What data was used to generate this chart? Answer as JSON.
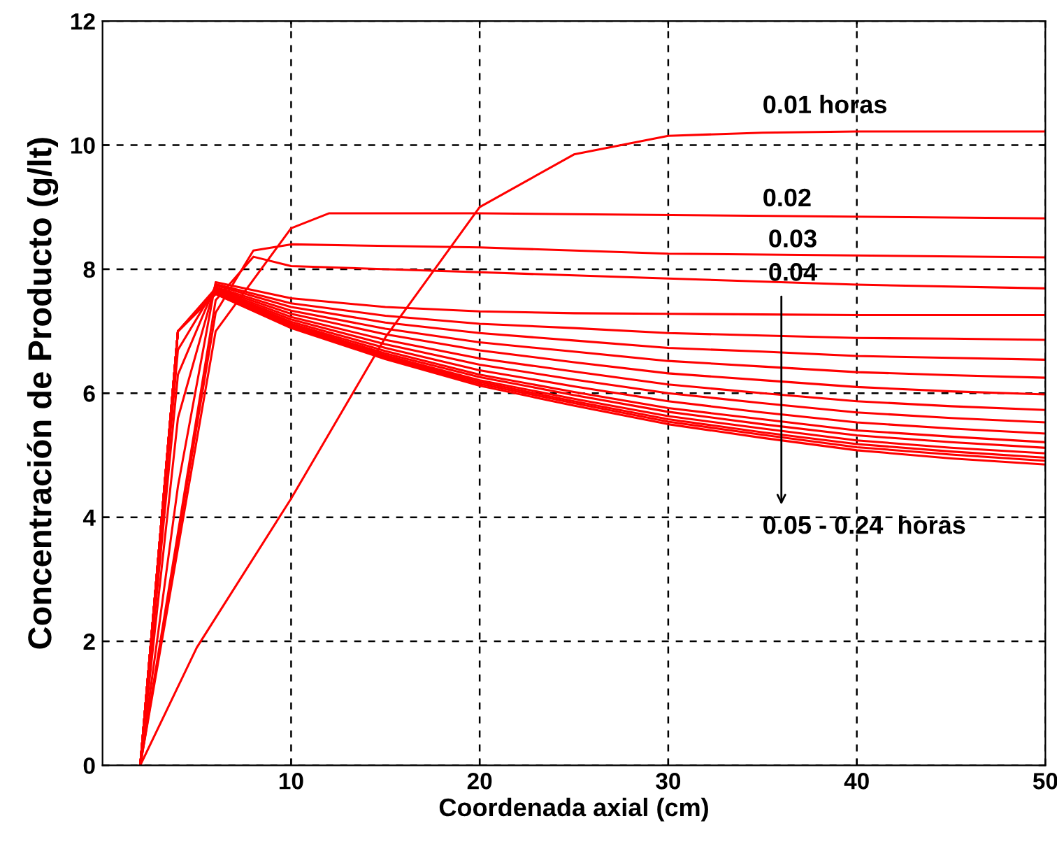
{
  "chart_data": {
    "type": "line",
    "xlabel": "Coordenada axial (cm)",
    "ylabel": "Concentración de Producto (g/lt)",
    "xlim": [
      0,
      50
    ],
    "ylim": [
      0,
      12
    ],
    "xticks": [
      10,
      20,
      30,
      40,
      50
    ],
    "yticks": [
      0,
      2,
      4,
      6,
      8,
      10,
      12
    ],
    "grid": true,
    "line_style": "solid",
    "marker": "none",
    "annotations": [
      "0.01 horas",
      "0.02",
      "0.03",
      "0.04",
      "0.05 - 0.24  horas"
    ],
    "series": [
      {
        "color": "#ff0000",
        "x": [
          2,
          5,
          10,
          15,
          20,
          25,
          30,
          35,
          40,
          50
        ],
        "values": [
          0,
          1.9,
          4.3,
          6.9,
          9.0,
          9.85,
          10.15,
          10.2,
          10.22,
          10.22
        ]
      },
      {
        "color": "#ff0000",
        "x": [
          2,
          6,
          10,
          12,
          20,
          50
        ],
        "values": [
          0,
          7.0,
          8.66,
          8.9,
          8.9,
          8.82
        ]
      },
      {
        "color": "#ff0000",
        "x": [
          2,
          6,
          8,
          10,
          20,
          30,
          50
        ],
        "values": [
          0,
          7.3,
          8.3,
          8.4,
          8.35,
          8.25,
          8.19
        ]
      },
      {
        "color": "#ff0000",
        "x": [
          2,
          6,
          8,
          10,
          20,
          30,
          40,
          50
        ],
        "values": [
          0,
          7.5,
          8.2,
          8.05,
          7.95,
          7.85,
          7.75,
          7.69
        ]
      },
      {
        "color": "#ff0000",
        "x": [
          2,
          4,
          6,
          10,
          15,
          20,
          25,
          30,
          35,
          40,
          45,
          50
        ],
        "values": [
          0,
          4.5,
          7.79,
          7.53,
          7.39,
          7.32,
          7.29,
          7.28,
          7.27,
          7.26,
          7.26,
          7.26
        ]
      },
      {
        "color": "#ff0000",
        "x": [
          2,
          4,
          6,
          10,
          15,
          20,
          25,
          30,
          35,
          40,
          45,
          50
        ],
        "values": [
          0,
          5.6,
          7.76,
          7.45,
          7.25,
          7.12,
          7.05,
          6.97,
          6.93,
          6.89,
          6.88,
          6.86
        ]
      },
      {
        "color": "#ff0000",
        "x": [
          2,
          4,
          6,
          10,
          15,
          20,
          25,
          30,
          35,
          40,
          45,
          50
        ],
        "values": [
          0,
          6.3,
          7.74,
          7.39,
          7.14,
          6.97,
          6.85,
          6.73,
          6.67,
          6.6,
          6.57,
          6.54
        ]
      },
      {
        "color": "#ff0000",
        "x": [
          2,
          4,
          6,
          10,
          15,
          20,
          25,
          30,
          35,
          40,
          45,
          50
        ],
        "values": [
          0,
          6.7,
          7.71,
          7.33,
          7.04,
          6.82,
          6.67,
          6.52,
          6.43,
          6.34,
          6.29,
          6.25
        ]
      },
      {
        "color": "#ff0000",
        "x": [
          2,
          4,
          6,
          10,
          15,
          20,
          25,
          30,
          35,
          40,
          45,
          50
        ],
        "values": [
          0,
          7.0,
          7.69,
          7.28,
          6.95,
          6.69,
          6.5,
          6.32,
          6.21,
          6.1,
          6.03,
          5.98
        ]
      },
      {
        "color": "#ff0000",
        "x": [
          2,
          4,
          6,
          10,
          15,
          20,
          25,
          30,
          35,
          40,
          45,
          50
        ],
        "values": [
          0,
          7.0,
          7.67,
          7.23,
          6.86,
          6.56,
          6.35,
          6.14,
          6.0,
          5.87,
          5.79,
          5.73
        ]
      },
      {
        "color": "#ff0000",
        "x": [
          2,
          4,
          6,
          10,
          15,
          20,
          25,
          30,
          35,
          40,
          45,
          50
        ],
        "values": [
          0,
          7.0,
          7.65,
          7.19,
          6.79,
          6.46,
          6.22,
          6.0,
          5.84,
          5.69,
          5.6,
          5.53
        ]
      },
      {
        "color": "#ff0000",
        "x": [
          2,
          4,
          6,
          10,
          15,
          20,
          25,
          30,
          35,
          40,
          45,
          50
        ],
        "values": [
          0,
          7.0,
          7.64,
          7.15,
          6.73,
          6.37,
          6.11,
          5.87,
          5.69,
          5.53,
          5.43,
          5.35
        ]
      },
      {
        "color": "#ff0000",
        "x": [
          2,
          4,
          6,
          10,
          15,
          20,
          25,
          30,
          35,
          40,
          45,
          50
        ],
        "values": [
          0,
          7.0,
          7.63,
          7.12,
          6.68,
          6.3,
          6.02,
          5.76,
          5.58,
          5.4,
          5.3,
          5.21
        ]
      },
      {
        "color": "#ff0000",
        "x": [
          2,
          4,
          6,
          10,
          15,
          20,
          25,
          30,
          35,
          40,
          45,
          50
        ],
        "values": [
          0,
          7.0,
          7.62,
          7.1,
          6.64,
          6.26,
          5.97,
          5.7,
          5.5,
          5.32,
          5.21,
          5.12
        ]
      },
      {
        "color": "#ff0000",
        "x": [
          2,
          4,
          6,
          10,
          15,
          20,
          25,
          30,
          35,
          40,
          45,
          50
        ],
        "values": [
          0,
          7.0,
          7.61,
          7.09,
          6.61,
          6.21,
          5.91,
          5.63,
          5.43,
          5.24,
          5.12,
          5.03
        ]
      },
      {
        "color": "#ff0000",
        "x": [
          2,
          4,
          6,
          10,
          15,
          20,
          25,
          30,
          35,
          40,
          45,
          50
        ],
        "values": [
          0,
          7.0,
          7.61,
          7.07,
          6.59,
          6.18,
          5.87,
          5.58,
          5.37,
          5.18,
          5.06,
          4.96
        ]
      },
      {
        "color": "#ff0000",
        "x": [
          2,
          4,
          6,
          10,
          15,
          20,
          25,
          30,
          35,
          40,
          45,
          50
        ],
        "values": [
          0,
          7.0,
          7.6,
          7.06,
          6.57,
          6.15,
          5.84,
          5.54,
          5.33,
          5.13,
          5.01,
          4.91
        ]
      },
      {
        "color": "#ff0000",
        "x": [
          2,
          4,
          6,
          10,
          15,
          20,
          25,
          30,
          35,
          40,
          45,
          50
        ],
        "values": [
          0,
          7.0,
          7.6,
          7.05,
          6.55,
          6.12,
          5.8,
          5.5,
          5.28,
          5.08,
          4.95,
          4.85
        ]
      }
    ]
  }
}
